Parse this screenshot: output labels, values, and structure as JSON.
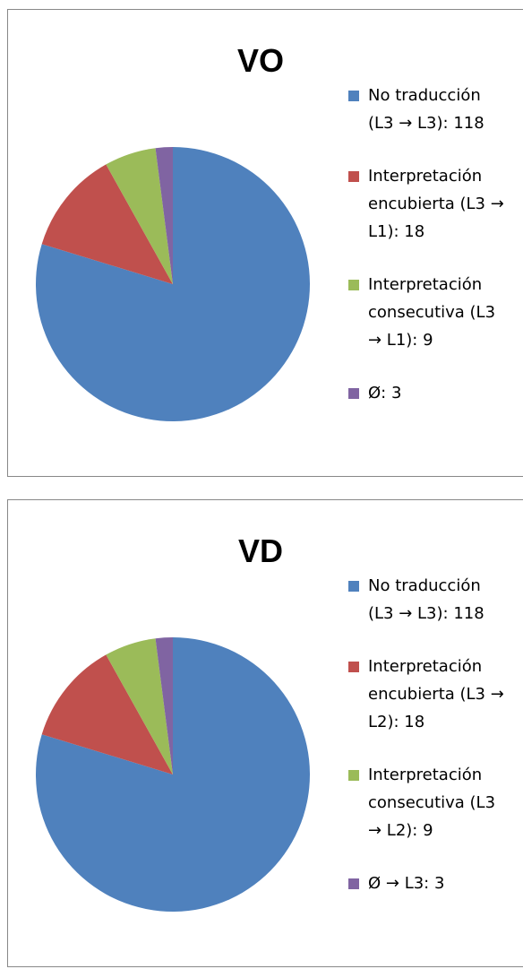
{
  "chart_data": [
    {
      "type": "pie",
      "title": "VO",
      "categories": [
        "No traducción (L3 → L3): 118",
        "Interpretación encubierta (L3 → L1): 18",
        "Interpretación consecutiva (L3 → L1): 9",
        "Ø: 3"
      ],
      "values": [
        118,
        18,
        9,
        3
      ],
      "colors": [
        "#4f81bd",
        "#c0504d",
        "#9bbb59",
        "#8064a2"
      ],
      "legend": "right"
    },
    {
      "type": "pie",
      "title": "VD",
      "categories": [
        "No traducción (L3 → L3): 118",
        "Interpretación encubierta (L3 → L2): 18",
        "Interpretación consecutiva (L3 → L2): 9",
        "Ø → L3: 3"
      ],
      "values": [
        118,
        18,
        9,
        3
      ],
      "colors": [
        "#4f81bd",
        "#c0504d",
        "#9bbb59",
        "#8064a2"
      ],
      "legend": "right"
    }
  ]
}
